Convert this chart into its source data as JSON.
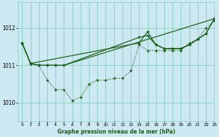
{
  "title": "Graphe pression niveau de la mer (hPa)",
  "bg_color": "#cce8f0",
  "grid_color": "#88ccbb",
  "line_color": "#1a5c1a",
  "xlim": [
    -0.5,
    23
  ],
  "ylim": [
    1009.5,
    1012.7
  ],
  "yticks": [
    1010,
    1011,
    1012
  ],
  "xticks": [
    0,
    1,
    2,
    3,
    4,
    5,
    6,
    7,
    8,
    9,
    10,
    11,
    12,
    13,
    14,
    15,
    16,
    17,
    18,
    19,
    20,
    21,
    22,
    23
  ],
  "series_dotted_x": [
    0,
    1,
    2,
    3,
    4,
    5,
    6,
    7,
    8,
    9,
    10,
    11,
    12,
    13,
    14,
    15,
    16,
    17,
    18,
    19,
    20,
    21,
    22,
    23
  ],
  "series_dotted_y": [
    1011.6,
    1011.05,
    1011.0,
    1010.6,
    1010.35,
    1010.35,
    1010.05,
    1010.15,
    1010.5,
    1010.6,
    1010.6,
    1010.65,
    1010.65,
    1010.85,
    1011.55,
    1011.4,
    1011.4,
    1011.4,
    1011.4,
    1011.4,
    1011.6,
    1011.7,
    1012.0,
    1012.2
  ],
  "series_solid1_x": [
    0,
    1,
    2,
    3,
    4,
    5,
    23
  ],
  "series_solid1_y": [
    1011.6,
    1011.05,
    1011.0,
    1011.0,
    1011.0,
    1011.0,
    1012.25
  ],
  "series_solid2_x": [
    0,
    1,
    2,
    3,
    4,
    5,
    14,
    15,
    16,
    17,
    18,
    19,
    20,
    21,
    22,
    23
  ],
  "series_solid2_y": [
    1011.6,
    1011.05,
    1011.0,
    1011.0,
    1011.0,
    1011.0,
    1011.75,
    1011.8,
    1011.55,
    1011.45,
    1011.45,
    1011.45,
    1011.55,
    1011.7,
    1011.85,
    1012.25
  ],
  "series_solid3_x": [
    0,
    1,
    14,
    15,
    16,
    17,
    18,
    19,
    20,
    21,
    22,
    23
  ],
  "series_solid3_y": [
    1011.6,
    1011.05,
    1011.6,
    1011.9,
    1011.55,
    1011.45,
    1011.45,
    1011.45,
    1011.55,
    1011.7,
    1011.85,
    1012.25
  ]
}
